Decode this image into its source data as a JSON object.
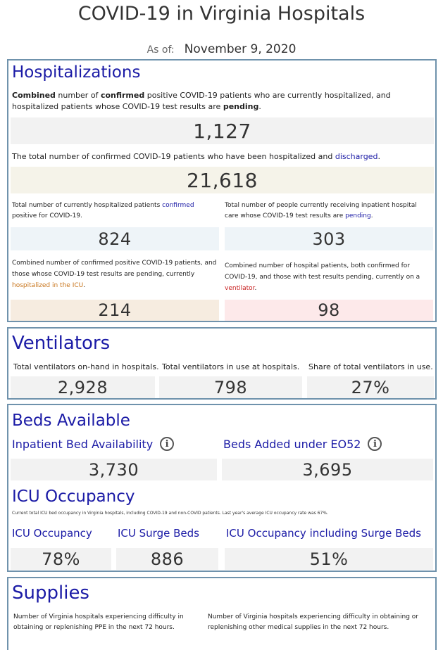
{
  "header": {
    "title": "COVID-19 in Virginia Hospitals",
    "as_of_label": "As of:",
    "as_of_date": "November 9, 2020"
  },
  "hospitalizations": {
    "heading": "Hospitalizations",
    "combined_desc": {
      "p1": "Combined",
      "p2": " number of ",
      "p3": "confirmed",
      "p4": " positive COVID-19 patients who are currently hospitalized, and hospitalized patients whose COVID-19 test results are ",
      "p5": "pending",
      "p6": "."
    },
    "combined_value": "1,127",
    "discharged_desc": {
      "p1": "The total number of confirmed COVID-19 patients who have been hospitalized and ",
      "p2": "discharged",
      "p3": "."
    },
    "discharged_value": "21,618",
    "confirmed_desc": {
      "p1": "Total number of currently hospitalized patients ",
      "p2": "confirmed",
      "p3": " positive for COVID-19."
    },
    "confirmed_value": "824",
    "pending_desc": {
      "p1": "Total number of people currently receiving inpatient hospital care whose COVID-19 test results are ",
      "p2": "pending",
      "p3": "."
    },
    "pending_value": "303",
    "icu_desc": {
      "p1": "Combined number of confirmed positive COVID-19 patients, and those whose COVID-19 test results are pending, currently ",
      "p2": "hospitalized in the ICU",
      "p3": "."
    },
    "icu_value": "214",
    "vent_desc": {
      "p1": "Combined number of hospital patients, both confirmed for COVID-19, and those with test results pending, currently on a ",
      "p2": "ventilator",
      "p3": "."
    },
    "vent_value": "98"
  },
  "ventilators": {
    "heading": "Ventilators",
    "onhand_label": "Total ventilators on-hand in hospitals.",
    "onhand_value": "2,928",
    "inuse_label": "Total ventilators in use at hospitals.",
    "inuse_value": "798",
    "share_label": "Share of total ventilators in use.",
    "share_value": "27%"
  },
  "beds": {
    "heading": "Beds Available",
    "inpatient_label": "Inpatient Bed Availability",
    "inpatient_value": "3,730",
    "added_label": "Beds Added under EO52",
    "added_value": "3,695",
    "icu_heading": "ICU Occupancy",
    "icu_note": "Current total ICU bed occupancy in Virginia hospitals, including COVID-19 and non-COVID patients. Last year's average ICU occupancy rate was 67%.",
    "icu_occ_label": "ICU Occupancy",
    "icu_occ_value": "78%",
    "surge_label": "ICU Surge Beds",
    "surge_value": "886",
    "incl_label": "ICU Occupancy including Surge Beds",
    "incl_value": "51%"
  },
  "supplies": {
    "heading": "Supplies",
    "ppe_desc": "Number of Virginia hospitals experiencing difficulty in obtaining or replenishing PPE in the next 72 hours.",
    "other_desc": "Number of Virginia hospitals experiencing difficulty in obtaining or replenishing other medical supplies in the next 72 hours."
  }
}
